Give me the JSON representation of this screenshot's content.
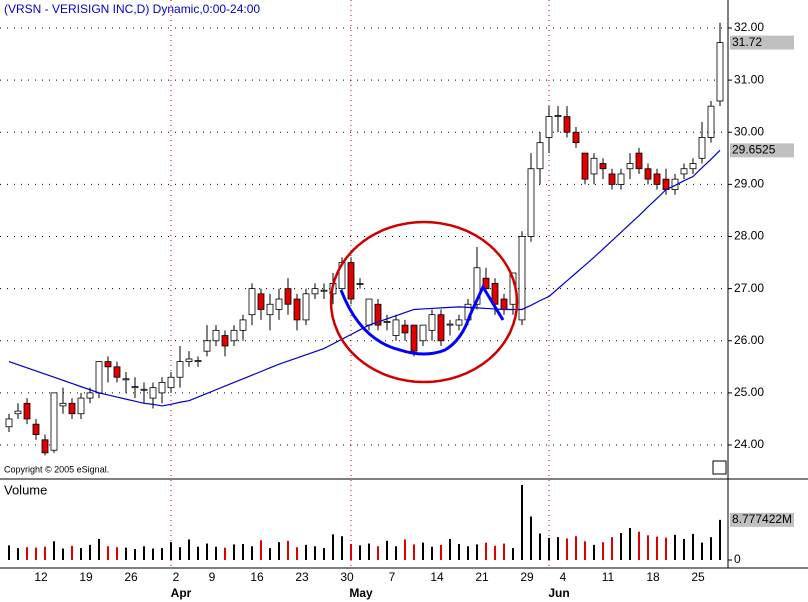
{
  "chart_data": {
    "type": "candlestick",
    "title": "(VRSN - VERISIGN INC,D) Dynamic,0:00-24:00",
    "copyright": "Copyright © 2005 eSignal.",
    "categories": [
      null,
      null,
      null,
      "12",
      null,
      null,
      null,
      null,
      "19",
      null,
      null,
      null,
      null,
      "26",
      null,
      null,
      null,
      null,
      "2",
      null,
      null,
      null,
      "9",
      null,
      null,
      null,
      null,
      "16",
      null,
      null,
      null,
      null,
      "23",
      null,
      null,
      null,
      null,
      "30",
      null,
      null,
      null,
      null,
      "7",
      null,
      null,
      null,
      null,
      "14",
      null,
      null,
      null,
      null,
      "21",
      null,
      null,
      null,
      null,
      "29",
      null,
      null,
      null,
      "4",
      null,
      null,
      null,
      null,
      "11",
      null,
      null,
      null,
      null,
      "18",
      null,
      null,
      null,
      null,
      "25",
      null,
      null,
      null
    ],
    "months": [
      null,
      null,
      null,
      null,
      null,
      null,
      null,
      null,
      null,
      null,
      null,
      null,
      null,
      null,
      null,
      null,
      null,
      null,
      "Apr",
      null,
      null,
      null,
      null,
      null,
      null,
      null,
      null,
      null,
      null,
      null,
      null,
      null,
      null,
      null,
      null,
      null,
      null,
      null,
      "May",
      null,
      null,
      null,
      null,
      null,
      null,
      null,
      null,
      null,
      null,
      null,
      null,
      null,
      null,
      null,
      null,
      null,
      null,
      null,
      null,
      null,
      "Jun",
      null,
      null,
      null,
      null,
      null,
      null,
      null,
      null,
      null,
      null,
      null,
      null,
      null,
      null,
      null,
      null,
      null,
      null,
      null
    ],
    "candles": {
      "open": [
        24.35,
        24.6,
        24.8,
        24.4,
        24.1,
        23.9,
        24.75,
        24.8,
        24.6,
        24.9,
        25.0,
        25.6,
        25.5,
        25.25,
        25.1,
        25.05,
        24.9,
        25.0,
        25.1,
        25.3,
        25.6,
        25.6,
        25.8,
        26.0,
        26.1,
        26.0,
        26.2,
        26.5,
        26.9,
        26.5,
        26.6,
        27.0,
        26.8,
        26.4,
        26.9,
        26.95,
        26.9,
        27.0,
        27.5,
        27.1,
        26.3,
        26.7,
        26.35,
        26.1,
        26.3,
        26.3,
        26.0,
        26.2,
        26.5,
        26.3,
        26.3,
        26.4,
        26.7,
        27.2,
        27.1,
        26.8,
        26.7,
        26.4,
        28.0,
        29.3,
        29.9,
        30.3,
        30.3,
        30.0,
        29.6,
        29.2,
        29.4,
        29.2,
        29.0,
        29.3,
        29.6,
        29.3,
        29.2,
        29.1,
        28.9,
        29.2,
        29.3,
        29.5,
        29.9,
        30.6
      ],
      "high": [
        24.6,
        24.8,
        24.9,
        24.5,
        24.2,
        25.0,
        25.1,
        24.9,
        25.0,
        25.1,
        25.6,
        25.7,
        25.6,
        25.4,
        25.3,
        25.2,
        25.2,
        25.3,
        25.4,
        25.9,
        25.8,
        25.7,
        26.3,
        26.3,
        26.2,
        26.3,
        26.5,
        27.1,
        27.0,
        26.9,
        27.0,
        27.2,
        26.9,
        27.0,
        27.1,
        27.1,
        27.3,
        27.6,
        27.6,
        27.2,
        26.8,
        26.8,
        26.5,
        26.5,
        26.4,
        26.3,
        26.3,
        26.6,
        26.6,
        26.4,
        26.5,
        26.8,
        27.8,
        27.4,
        27.2,
        26.9,
        27.3,
        28.1,
        29.6,
        30.0,
        30.5,
        30.5,
        30.5,
        30.1,
        29.6,
        29.6,
        29.5,
        29.3,
        29.3,
        29.6,
        29.7,
        29.4,
        29.3,
        29.3,
        29.2,
        29.4,
        29.5,
        30.2,
        30.6,
        32.1
      ],
      "low": [
        24.25,
        24.5,
        24.4,
        24.1,
        23.8,
        23.85,
        24.6,
        24.5,
        24.5,
        24.8,
        24.9,
        25.2,
        25.2,
        25.0,
        24.9,
        24.8,
        24.7,
        24.8,
        25.0,
        25.1,
        25.5,
        25.5,
        25.7,
        25.9,
        25.7,
        25.9,
        26.0,
        26.3,
        26.4,
        26.2,
        26.4,
        26.5,
        26.2,
        26.3,
        26.8,
        26.8,
        26.7,
        26.9,
        26.7,
        27.0,
        26.2,
        26.2,
        26.2,
        26.0,
        26.0,
        25.7,
        25.9,
        26.0,
        25.9,
        26.1,
        26.2,
        26.3,
        26.6,
        26.9,
        26.5,
        26.5,
        26.5,
        26.3,
        27.9,
        29.0,
        29.6,
        30.0,
        29.9,
        29.7,
        29.0,
        29.0,
        29.1,
        28.9,
        28.9,
        29.1,
        29.2,
        29.0,
        28.9,
        28.8,
        28.8,
        29.1,
        29.2,
        29.4,
        29.8,
        30.5
      ],
      "close": [
        24.5,
        24.65,
        24.5,
        24.2,
        23.85,
        25.0,
        24.8,
        24.6,
        24.9,
        25.0,
        25.6,
        25.5,
        25.3,
        25.27,
        25.12,
        25.07,
        25.1,
        25.2,
        25.3,
        25.6,
        25.65,
        25.62,
        26.0,
        26.2,
        25.9,
        26.2,
        26.4,
        27.0,
        26.6,
        26.7,
        26.8,
        26.7,
        26.4,
        26.9,
        27.0,
        26.97,
        27.1,
        27.5,
        26.8,
        27.1,
        26.8,
        26.3,
        26.37,
        26.4,
        26.15,
        25.8,
        26.3,
        26.5,
        26.0,
        26.32,
        26.4,
        26.7,
        27.4,
        27.0,
        26.7,
        26.6,
        27.3,
        28.0,
        29.3,
        29.8,
        30.3,
        30.32,
        30.0,
        29.8,
        29.1,
        29.5,
        29.3,
        29.0,
        29.2,
        29.4,
        29.3,
        29.1,
        29.0,
        28.9,
        29.1,
        29.3,
        29.4,
        29.9,
        30.5,
        31.72
      ],
      "up_color": "#ffffff",
      "down_color": "#e00000"
    },
    "ma": {
      "color": "#0000cc",
      "values": [
        25.6,
        25.54,
        25.48,
        25.42,
        25.36,
        25.3,
        25.24,
        25.18,
        25.12,
        25.06,
        25.0,
        24.96,
        24.92,
        24.88,
        24.84,
        24.8,
        24.78,
        24.75,
        24.78,
        24.82,
        24.85,
        24.92,
        24.99,
        25.06,
        25.13,
        25.2,
        25.27,
        25.34,
        25.41,
        25.48,
        25.55,
        25.61,
        25.67,
        25.73,
        25.79,
        25.85,
        25.94,
        26.03,
        26.12,
        26.21,
        26.3,
        26.36,
        26.42,
        26.48,
        26.54,
        26.6,
        26.61,
        26.62,
        26.63,
        26.64,
        26.65,
        26.64,
        26.63,
        26.62,
        26.61,
        26.6,
        26.6,
        26.6,
        26.68,
        26.77,
        26.85,
        27.0,
        27.15,
        27.3,
        27.45,
        27.6,
        27.76,
        27.92,
        28.08,
        28.24,
        28.4,
        28.57,
        28.73,
        28.9,
        28.98,
        29.07,
        29.15,
        29.32,
        29.48,
        29.6525
      ]
    },
    "ylim": [
      23.367,
      32.537
    ],
    "yticks": [
      {
        "value": 24,
        "label": "24.00"
      },
      {
        "value": 25,
        "label": "25.00"
      },
      {
        "value": 26,
        "label": "26.00"
      },
      {
        "value": 27,
        "label": "27.00"
      },
      {
        "value": 28,
        "label": "28.00"
      },
      {
        "value": 29,
        "label": "29.00"
      },
      {
        "value": 30,
        "label": "30.00"
      },
      {
        "value": 31,
        "label": "31.00"
      },
      {
        "value": 32,
        "label": "32.00"
      }
    ],
    "grid": true,
    "volume": {
      "title": "Volume",
      "up_color": "#000000",
      "down_color": "#e00000",
      "ylim": [
        0,
        17500000
      ],
      "yticks": [
        0
      ],
      "values": [
        3200000,
        2600000,
        2800000,
        2700000,
        2900000,
        4100000,
        2500000,
        3100000,
        2600000,
        3300000,
        4600000,
        3000000,
        2800000,
        2700000,
        2400000,
        3000000,
        2500000,
        2600000,
        3900000,
        2800000,
        4500000,
        2900000,
        3600000,
        2900000,
        2700000,
        3400000,
        3500000,
        3000000,
        4300000,
        2600000,
        3900000,
        4200000,
        2800000,
        3300000,
        3000000,
        2600000,
        5600000,
        5200000,
        3500000,
        3200000,
        3600000,
        3000000,
        4200000,
        3000000,
        4500000,
        3400000,
        3800000,
        2900000,
        3300000,
        4600000,
        3500000,
        3000000,
        3400000,
        3800000,
        3100000,
        3600000,
        2600000,
        16400000,
        9500000,
        5800000,
        4800000,
        5000000,
        4700000,
        5200000,
        4100000,
        3300000,
        3900000,
        5000000,
        5900000,
        7000000,
        6200000,
        5400000,
        5100000,
        4900000,
        5500000,
        4600000,
        5700000,
        3800000,
        5000000,
        8777422
      ],
      "value_labels": [
        null,
        null,
        null,
        null,
        null,
        null,
        null,
        null,
        null,
        null,
        null,
        null,
        null,
        null,
        null,
        null,
        null,
        null,
        null,
        null,
        null,
        null,
        null,
        null,
        null,
        null,
        null,
        null,
        null,
        null,
        null,
        null,
        null,
        null,
        null,
        null,
        null,
        null,
        null,
        null,
        null,
        null,
        null,
        null,
        null,
        null,
        null,
        null,
        null,
        null,
        null,
        null,
        null,
        null,
        null,
        null,
        null,
        null,
        null,
        null,
        null,
        null,
        null,
        null,
        null,
        null,
        null,
        null,
        null,
        null,
        null,
        null,
        null,
        null,
        null,
        null,
        null,
        null,
        null,
        "8.777422M"
      ]
    }
  }
}
